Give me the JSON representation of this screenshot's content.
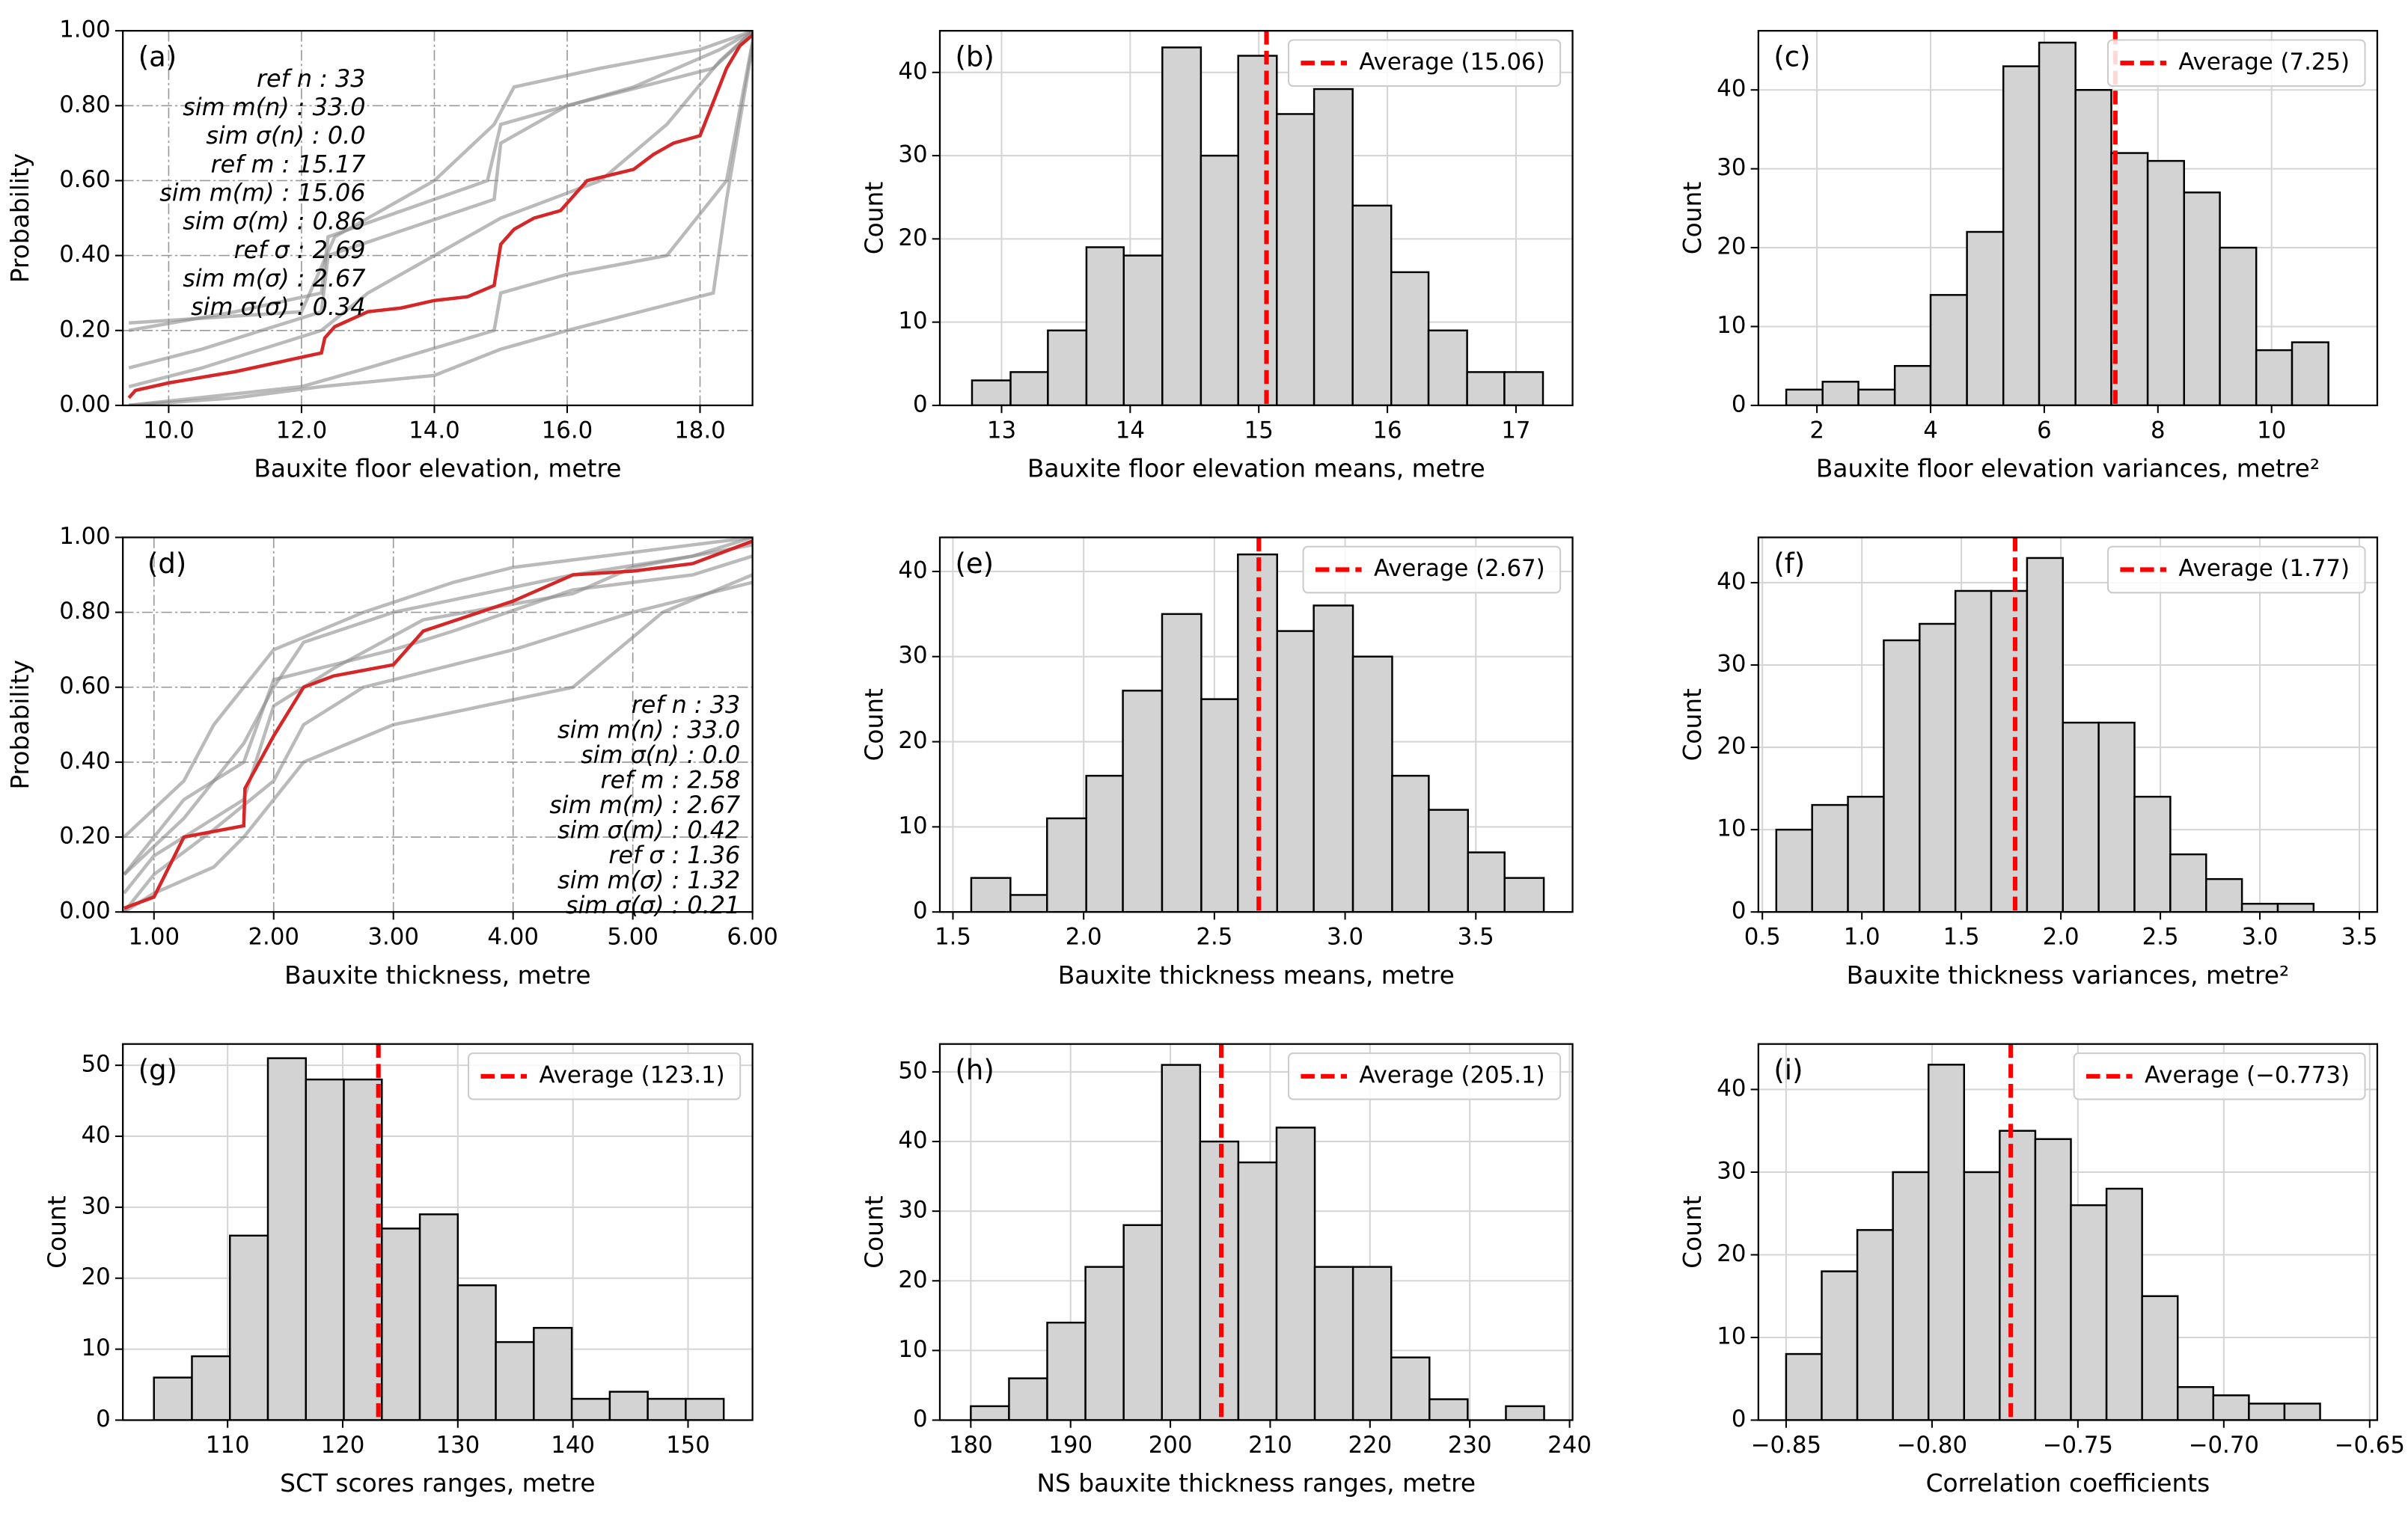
{
  "chart_data": [
    {
      "type": "line",
      "label": "(a)",
      "xlabel": "Bauxite floor elevation, metre",
      "ylabel": "Probability",
      "xlim": [
        9.31,
        18.79
      ],
      "ylim": [
        0,
        1.0
      ],
      "xticks": [
        {
          "value": 10,
          "label": "10.0"
        },
        {
          "value": 12,
          "label": "12.0"
        },
        {
          "value": 14,
          "label": "14.0"
        },
        {
          "value": 16,
          "label": "16.0"
        },
        {
          "value": 18,
          "label": "18.0"
        }
      ],
      "yticks": [
        {
          "value": 0,
          "label": "0.00"
        },
        {
          "value": 0.2,
          "label": "0.20"
        },
        {
          "value": 0.4,
          "label": "0.40"
        },
        {
          "value": 0.6,
          "label": "0.60"
        },
        {
          "value": 0.8,
          "label": "0.80"
        },
        {
          "value": 1.0,
          "label": "1.00"
        }
      ],
      "grid": true,
      "annotations": [
        "ref n : 33",
        "sim m(n) : 33.0",
        "sim σ(n) : 0.0",
        "ref m : 15.17",
        "sim m(m) : 15.06",
        "sim σ(m) : 0.86",
        "ref σ : 2.69",
        "sim m(σ) : 2.67",
        "sim σ(σ) : 0.34"
      ],
      "series": [
        {
          "color": "#8c8c8c",
          "x": [
            9.4,
            10.5,
            12.3,
            12.4,
            14.9,
            15,
            16,
            18.2,
            18.8
          ],
          "values": [
            0.1,
            0.15,
            0.25,
            0.4,
            0.55,
            0.7,
            0.8,
            0.9,
            1.0
          ]
        },
        {
          "color": "#8c8c8c",
          "x": [
            9.4,
            11,
            12.3,
            12.4,
            14.8,
            15,
            17,
            18.3,
            18.8
          ],
          "values": [
            0.2,
            0.25,
            0.3,
            0.45,
            0.6,
            0.75,
            0.85,
            0.95,
            1.0
          ]
        },
        {
          "color": "#8c8c8c",
          "x": [
            9.4,
            12,
            13,
            14.9,
            15,
            16,
            17.5,
            18.4,
            18.8
          ],
          "values": [
            0.0,
            0.05,
            0.1,
            0.2,
            0.3,
            0.35,
            0.4,
            0.6,
            0.98
          ]
        },
        {
          "color": "#8c8c8c",
          "x": [
            9.4,
            10.5,
            12.3,
            13,
            15,
            16.5,
            17.5,
            18.3,
            18.8
          ],
          "values": [
            0.05,
            0.1,
            0.2,
            0.3,
            0.5,
            0.6,
            0.75,
            0.92,
            1.0
          ]
        },
        {
          "color": "#8c8c8c",
          "x": [
            9.4,
            12,
            12.5,
            14,
            14.9,
            15.2,
            16.5,
            18,
            18.8
          ],
          "values": [
            0.22,
            0.25,
            0.45,
            0.6,
            0.75,
            0.85,
            0.9,
            0.95,
            1.0
          ]
        },
        {
          "color": "#8c8c8c",
          "x": [
            9.4,
            11,
            12.3,
            14,
            15,
            16,
            18.2,
            18.4,
            18.8
          ],
          "values": [
            0.0,
            0.02,
            0.05,
            0.08,
            0.15,
            0.2,
            0.3,
            0.55,
            0.97
          ]
        },
        {
          "color": "#d62728",
          "x": [
            9.4,
            9.5,
            10,
            11,
            12.3,
            12.35,
            12.5,
            13,
            13.5,
            14,
            14.5,
            14.9,
            15.0,
            15.2,
            15.5,
            15.9,
            16.1,
            16.3,
            17,
            17.3,
            17.6,
            18,
            18.4,
            18.6,
            18.8
          ],
          "values": [
            0.02,
            0.04,
            0.06,
            0.09,
            0.14,
            0.18,
            0.21,
            0.25,
            0.26,
            0.28,
            0.29,
            0.32,
            0.43,
            0.47,
            0.5,
            0.52,
            0.56,
            0.6,
            0.63,
            0.67,
            0.7,
            0.72,
            0.9,
            0.96,
            0.99
          ]
        }
      ]
    },
    {
      "type": "histogram",
      "label": "(b)",
      "xlabel": "Bauxite floor elevation means, metre",
      "ylabel": "Count",
      "bins": [
        12.77,
        13.07,
        13.36,
        13.66,
        13.95,
        14.25,
        14.55,
        14.84,
        15.14,
        15.43,
        15.73,
        16.03,
        16.32,
        16.62,
        16.91,
        17.21
      ],
      "values": [
        3,
        4,
        9,
        19,
        18,
        43,
        30,
        42,
        35,
        38,
        24,
        16,
        9,
        4,
        4
      ],
      "color": "#d3d3d3",
      "average": 15.06,
      "average_label": "Average (15.06)",
      "average_color": "#ff0000",
      "xlim": [
        12.52,
        17.44
      ],
      "ylim": [
        0,
        45
      ],
      "xticks": [
        13,
        14,
        15,
        16,
        17
      ],
      "yticks": [
        0,
        10,
        20,
        30,
        40
      ],
      "grid": true,
      "legend": "upper right"
    },
    {
      "type": "histogram",
      "label": "(c)",
      "xlabel": "Bauxite floor elevation variances, metre²",
      "ylabel": "Count",
      "bins": [
        1.46,
        2.1,
        2.73,
        3.37,
        4.0,
        4.64,
        5.28,
        5.91,
        6.55,
        7.18,
        7.82,
        8.46,
        9.09,
        9.73,
        10.36,
        11.0
      ],
      "values": [
        2,
        3,
        2,
        5,
        14,
        22,
        43,
        46,
        40,
        32,
        31,
        27,
        20,
        7,
        8
      ],
      "color": "#d3d3d3",
      "average": 7.25,
      "average_label": "Average (7.25)",
      "average_color": "#ff0000",
      "xlim": [
        0.97,
        11.86
      ],
      "ylim": [
        0,
        47.5
      ],
      "xticks": [
        2,
        4,
        6,
        8,
        10
      ],
      "yticks": [
        0,
        10,
        20,
        30,
        40
      ],
      "grid": true,
      "legend": "upper right"
    },
    {
      "type": "line",
      "label": "(d)",
      "xlabel": "Bauxite thickness, metre",
      "ylabel": "Probability",
      "xlim": [
        0.74,
        6.0
      ],
      "ylim": [
        0,
        1.0
      ],
      "xticks": [
        {
          "value": 1,
          "label": "1.00"
        },
        {
          "value": 2,
          "label": "2.00"
        },
        {
          "value": 3,
          "label": "3.00"
        },
        {
          "value": 4,
          "label": "4.00"
        },
        {
          "value": 5,
          "label": "5.00"
        },
        {
          "value": 6,
          "label": "6.00"
        }
      ],
      "yticks": [
        {
          "value": 0,
          "label": "0.00"
        },
        {
          "value": 0.2,
          "label": "0.20"
        },
        {
          "value": 0.4,
          "label": "0.40"
        },
        {
          "value": 0.6,
          "label": "0.60"
        },
        {
          "value": 0.8,
          "label": "0.80"
        },
        {
          "value": 1.0,
          "label": "1.00"
        }
      ],
      "grid": true,
      "annotations": [
        "ref n : 33",
        "sim m(n) : 33.0",
        "sim σ(n) : 0.0",
        "ref m : 2.58",
        "sim m(m) : 2.67",
        "sim σ(m) : 0.42",
        "ref σ : 1.36",
        "sim m(σ) : 1.32",
        "sim σ(σ) : 0.21"
      ],
      "series": [
        {
          "color": "#8c8c8c",
          "x": [
            0.75,
            1.25,
            1.75,
            2.0,
            2.25,
            3.0,
            4.5,
            5.5,
            6.0
          ],
          "values": [
            0.1,
            0.25,
            0.45,
            0.6,
            0.72,
            0.8,
            0.9,
            0.95,
            1.0
          ]
        },
        {
          "color": "#8c8c8c",
          "x": [
            0.75,
            1.0,
            1.75,
            2.0,
            2.5,
            3.25,
            4.5,
            5.0,
            6.0
          ],
          "values": [
            0.05,
            0.15,
            0.3,
            0.55,
            0.65,
            0.78,
            0.85,
            0.92,
            0.98
          ]
        },
        {
          "color": "#8c8c8c",
          "x": [
            0.75,
            1.25,
            1.5,
            2.0,
            2.75,
            3.5,
            4.0,
            5.0,
            6.0
          ],
          "values": [
            0.2,
            0.35,
            0.5,
            0.7,
            0.8,
            0.88,
            0.92,
            0.96,
            1.0
          ]
        },
        {
          "color": "#8c8c8c",
          "x": [
            0.75,
            1.0,
            1.5,
            1.75,
            2.25,
            3.0,
            4.5,
            5.25,
            6.0
          ],
          "values": [
            0.0,
            0.05,
            0.12,
            0.2,
            0.4,
            0.5,
            0.6,
            0.8,
            0.9
          ]
        },
        {
          "color": "#8c8c8c",
          "x": [
            0.75,
            1.25,
            1.75,
            2.0,
            3.0,
            3.5,
            4.5,
            5.5,
            6.0
          ],
          "values": [
            0.1,
            0.3,
            0.4,
            0.62,
            0.7,
            0.75,
            0.86,
            0.9,
            0.95
          ]
        },
        {
          "color": "#8c8c8c",
          "x": [
            0.75,
            1.0,
            1.5,
            2.0,
            2.25,
            2.75,
            4.0,
            5.0,
            6.0
          ],
          "values": [
            0.0,
            0.1,
            0.22,
            0.35,
            0.5,
            0.6,
            0.7,
            0.8,
            0.88
          ]
        },
        {
          "color": "#d62728",
          "x": [
            0.75,
            1.0,
            1.25,
            1.75,
            1.76,
            2.0,
            2.25,
            2.5,
            3.0,
            3.25,
            4.0,
            4.5,
            5.0,
            5.5,
            6.0
          ],
          "values": [
            0.01,
            0.04,
            0.2,
            0.23,
            0.33,
            0.47,
            0.6,
            0.63,
            0.66,
            0.75,
            0.83,
            0.9,
            0.91,
            0.93,
            0.99
          ]
        }
      ]
    },
    {
      "type": "histogram",
      "label": "(e)",
      "xlabel": "Bauxite thickness means, metre",
      "ylabel": "Count",
      "bins": [
        1.57,
        1.72,
        1.86,
        2.01,
        2.15,
        2.3,
        2.45,
        2.59,
        2.74,
        2.88,
        3.03,
        3.18,
        3.32,
        3.47,
        3.61,
        3.76
      ],
      "values": [
        4,
        2,
        11,
        16,
        26,
        35,
        25,
        42,
        33,
        36,
        30,
        16,
        12,
        7,
        4
      ],
      "color": "#d3d3d3",
      "average": 2.67,
      "average_label": "Average (2.67)",
      "average_color": "#ff0000",
      "xlim": [
        1.45,
        3.87
      ],
      "ylim": [
        0,
        44
      ],
      "xticks": [
        1.5,
        {
          "value": 2,
          "label": "2.0"
        },
        2.5,
        {
          "value": 3,
          "label": "3.0"
        },
        3.5
      ],
      "yticks": [
        0,
        10,
        20,
        30,
        40
      ],
      "grid": true,
      "legend": "upper right"
    },
    {
      "type": "histogram",
      "label": "(f)",
      "xlabel": "Bauxite thickness variances, metre²",
      "ylabel": "Count",
      "bins": [
        0.57,
        0.75,
        0.93,
        1.11,
        1.29,
        1.47,
        1.65,
        1.83,
        2.01,
        2.19,
        2.37,
        2.55,
        2.73,
        2.91,
        3.09,
        3.27
      ],
      "values": [
        10,
        13,
        14,
        33,
        35,
        39,
        39,
        43,
        23,
        23,
        14,
        7,
        4,
        1,
        1
      ],
      "color": "#d3d3d3",
      "average": 1.77,
      "average_label": "Average (1.77)",
      "average_color": "#ff0000",
      "xlim": [
        0.48,
        3.59
      ],
      "ylim": [
        0,
        45.5
      ],
      "xticks": [
        0.5,
        {
          "value": 1,
          "label": "1.0"
        },
        1.5,
        {
          "value": 2,
          "label": "2.0"
        },
        2.5,
        {
          "value": 3,
          "label": "3.0"
        },
        3.5
      ],
      "yticks": [
        0,
        10,
        20,
        30,
        40
      ],
      "grid": true,
      "legend": "upper right"
    },
    {
      "type": "histogram",
      "label": "(g)",
      "xlabel": "SCT scores ranges, metre",
      "ylabel": "Count",
      "bins": [
        103.6,
        106.9,
        110.2,
        113.5,
        116.8,
        120.1,
        123.4,
        126.7,
        130.0,
        133.3,
        136.6,
        139.9,
        143.2,
        146.5,
        149.8,
        153.1
      ],
      "values": [
        6,
        9,
        26,
        51,
        48,
        48,
        27,
        29,
        19,
        11,
        13,
        3,
        4,
        3,
        3
      ],
      "color": "#d3d3d3",
      "average": 123.1,
      "average_label": "Average (123.1)",
      "average_color": "#ff0000",
      "xlim": [
        100.9,
        155.6
      ],
      "ylim": [
        0,
        53
      ],
      "xticks": [
        110,
        120,
        130,
        140,
        150
      ],
      "yticks": [
        0,
        10,
        20,
        30,
        40,
        50
      ],
      "grid": true,
      "legend": "upper right"
    },
    {
      "type": "histogram",
      "label": "(h)",
      "xlabel": "NS bauxite thickness ranges, metre",
      "ylabel": "Count",
      "bins": [
        180.0,
        183.83,
        187.66,
        191.49,
        195.32,
        199.15,
        202.98,
        206.81,
        210.64,
        214.47,
        218.3,
        222.13,
        225.96,
        229.79,
        233.62,
        237.45
      ],
      "values": [
        2,
        6,
        14,
        22,
        28,
        51,
        40,
        37,
        42,
        22,
        22,
        9,
        3,
        0,
        2
      ],
      "color": "#d3d3d3",
      "average": 205.1,
      "average_label": "Average (205.1)",
      "average_color": "#ff0000",
      "xlim": [
        176.9,
        240.3
      ],
      "ylim": [
        0,
        54
      ],
      "xticks": [
        180,
        190,
        200,
        210,
        220,
        230,
        240
      ],
      "yticks": [
        0,
        10,
        20,
        30,
        40,
        50
      ],
      "grid": true,
      "legend": "upper right"
    },
    {
      "type": "histogram",
      "label": "(i)",
      "xlabel": "Correlation coefficients",
      "ylabel": "Count",
      "bins": [
        -0.85,
        -0.8378,
        -0.8256,
        -0.8134,
        -0.8012,
        -0.789,
        -0.7768,
        -0.7646,
        -0.7524,
        -0.7402,
        -0.728,
        -0.7158,
        -0.7036,
        -0.6914,
        -0.6792,
        -0.667
      ],
      "values": [
        8,
        18,
        23,
        30,
        43,
        30,
        35,
        34,
        26,
        28,
        15,
        4,
        3,
        2,
        2
      ],
      "color": "#d3d3d3",
      "average": -0.773,
      "average_label": "Average (−0.773)",
      "average_color": "#ff0000",
      "xlim": [
        -0.8595,
        -0.6474
      ],
      "ylim": [
        0,
        45.5
      ],
      "xticks": [
        {
          "value": -0.85,
          "label": "−0.85"
        },
        {
          "value": -0.8,
          "label": "−0.80"
        },
        {
          "value": -0.75,
          "label": "−0.75"
        },
        {
          "value": -0.7,
          "label": "−0.70"
        },
        {
          "value": -0.65,
          "label": "−0.65"
        }
      ],
      "yticks": [
        0,
        10,
        20,
        30,
        40
      ],
      "grid": true,
      "legend": "upper right"
    }
  ]
}
